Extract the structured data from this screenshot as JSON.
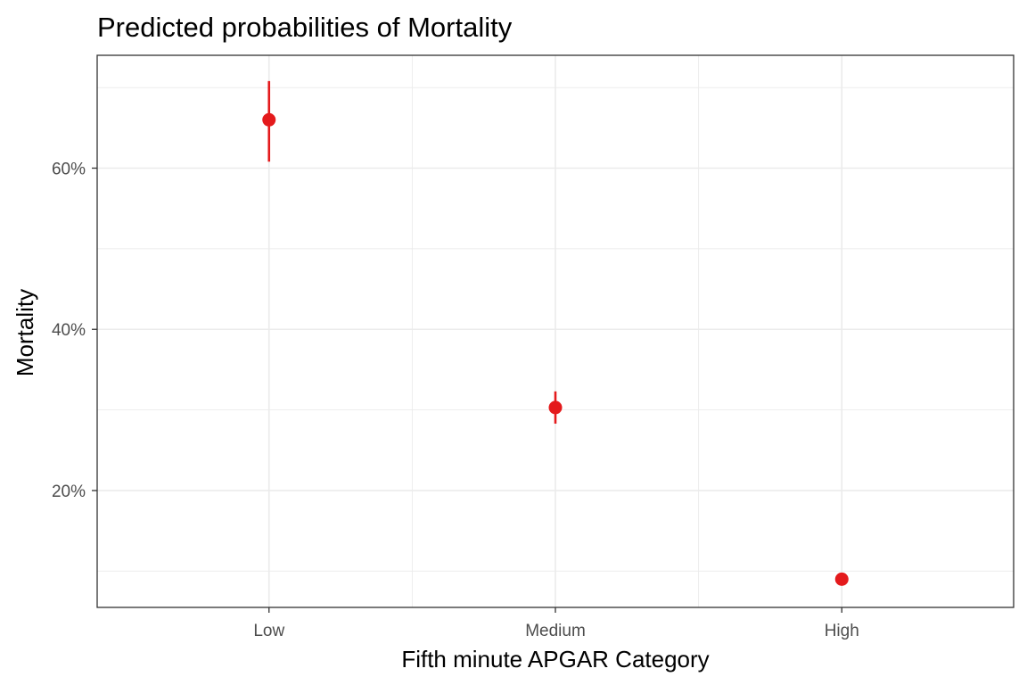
{
  "chart_data": {
    "type": "scatter",
    "title": "Predicted probabilities of Mortality",
    "xlabel": "Fifth minute APGAR Category",
    "ylabel": "Mortality",
    "categories": [
      "Low",
      "Medium",
      "High"
    ],
    "y_tick_values": [
      0.2,
      0.4,
      0.6
    ],
    "y_tick_labels": [
      "20%",
      "40%",
      "60%"
    ],
    "ylim": [
      0.055,
      0.74
    ],
    "grid": true,
    "legend": "none",
    "series": [
      {
        "color": "#e41a1c",
        "points": [
          {
            "x": "Low",
            "y": 0.66,
            "ymin": 0.608,
            "ymax": 0.708
          },
          {
            "x": "Medium",
            "y": 0.303,
            "ymin": 0.283,
            "ymax": 0.323
          },
          {
            "x": "High",
            "y": 0.09,
            "ymin": 0.086,
            "ymax": 0.094
          }
        ]
      }
    ]
  },
  "colors": {
    "point": "#e41a1c",
    "grid": "#ebebeb",
    "panel_border": "#333333",
    "tick_text": "#4d4d4d"
  }
}
